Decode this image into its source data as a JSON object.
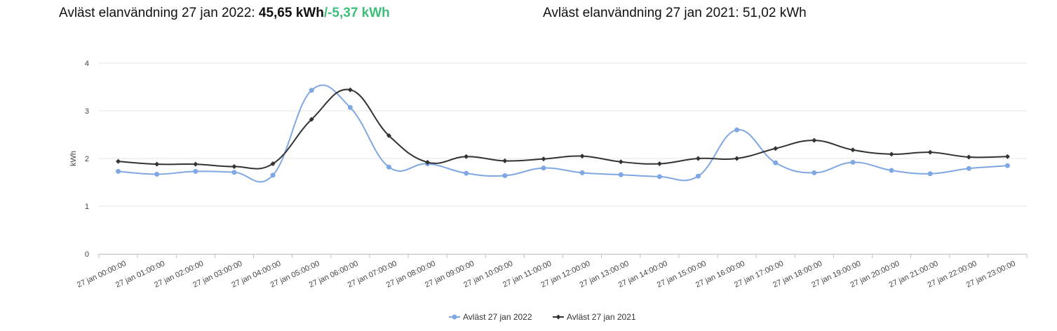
{
  "header": {
    "left_prefix": "Avläst elanvändning 27 jan 2022: ",
    "left_value": "45,65 kWh",
    "left_diff": "/-5,37 kWh",
    "right_text": "Avläst elanvändning 27 jan 2021: 51,02 kWh"
  },
  "colors": {
    "series_2022": "#7fa7e3",
    "series_2021": "#333333",
    "diff_green": "#3dbf7a",
    "grid": "#e6e6e6"
  },
  "chart_data": {
    "type": "line",
    "ylabel": "kWh",
    "ylim": [
      0,
      4
    ],
    "yticks": [
      "0",
      "1",
      "2",
      "3",
      "4"
    ],
    "grid": true,
    "legend_position": "bottom-center",
    "categories": [
      "27 jan 00:00:00",
      "27 jan 01:00:00",
      "27 jan 02:00:00",
      "27 jan 03:00:00",
      "27 jan 04:00:00",
      "27 jan 05:00:00",
      "27 jan 06:00:00",
      "27 jan 07:00:00",
      "27 jan 08:00:00",
      "27 jan 09:00:00",
      "27 jan 10:00:00",
      "27 jan 11:00:00",
      "27 jan 12:00:00",
      "27 jan 13:00:00",
      "27 jan 14:00:00",
      "27 jan 15:00:00",
      "27 jan 16:00:00",
      "27 jan 17:00:00",
      "27 jan 18:00:00",
      "27 jan 19:00:00",
      "27 jan 20:00:00",
      "27 jan 21:00:00",
      "27 jan 22:00:00",
      "27 jan 23:00:00"
    ],
    "series": [
      {
        "name": "Avläst 27 jan 2022",
        "marker": "circle",
        "values": [
          1.73,
          1.67,
          1.73,
          1.71,
          1.65,
          3.43,
          3.07,
          1.82,
          1.89,
          1.69,
          1.64,
          1.8,
          1.7,
          1.66,
          1.62,
          1.63,
          2.6,
          1.91,
          1.7,
          1.92,
          1.75,
          1.68,
          1.79,
          1.85
        ]
      },
      {
        "name": "Avläst 27 jan 2021",
        "marker": "diamond",
        "values": [
          1.94,
          1.88,
          1.88,
          1.83,
          1.89,
          2.82,
          3.44,
          2.48,
          1.92,
          2.04,
          1.95,
          1.99,
          2.05,
          1.93,
          1.89,
          2.0,
          2.0,
          2.21,
          2.38,
          2.18,
          2.09,
          2.13,
          2.03,
          2.04
        ]
      }
    ]
  }
}
